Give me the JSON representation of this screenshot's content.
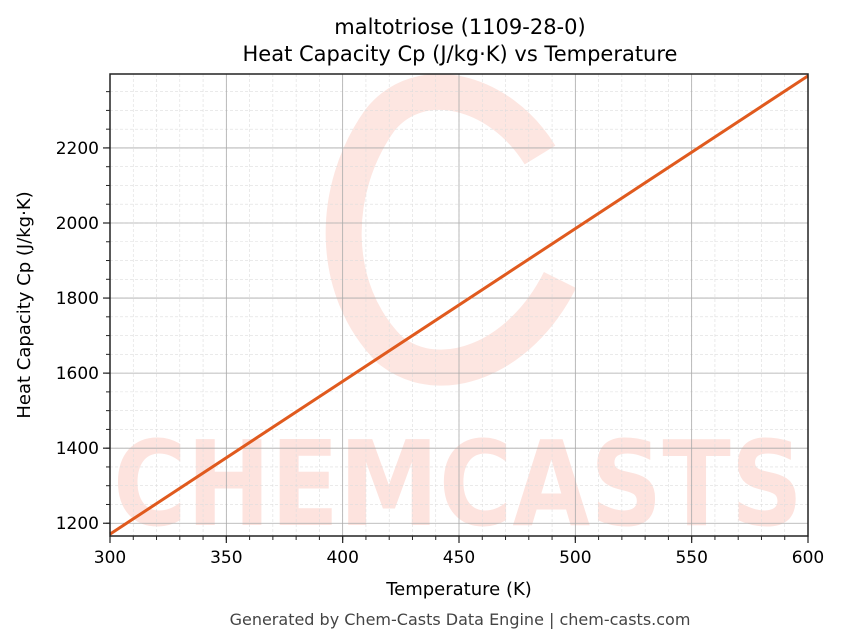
{
  "chart_data": {
    "type": "line",
    "title": "maltotriose (1109-28-0)",
    "subtitle": "Heat Capacity Cp (J/kg·K) vs Temperature",
    "xlabel": "Temperature (K)",
    "ylabel": "Heat Capacity Cp (J/kg·K)",
    "xlim": [
      300,
      600
    ],
    "ylim": [
      1166,
      2397
    ],
    "xticks": [
      300,
      350,
      400,
      450,
      500,
      550,
      600
    ],
    "yticks": [
      1200,
      1400,
      1600,
      1800,
      2000,
      2200
    ],
    "grid": true,
    "line_color": "#e05a1e",
    "series": [
      {
        "x": [
          300,
          600
        ],
        "y": [
          1171,
          2392
        ]
      }
    ]
  },
  "watermark": "CHEMCASTS",
  "footer": "Generated by Chem-Casts Data Engine | chem-casts.com"
}
